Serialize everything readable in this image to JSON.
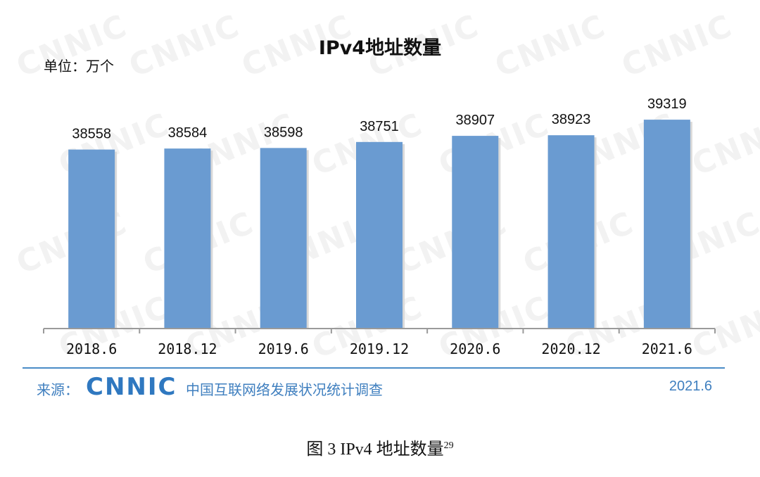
{
  "watermark": "CNNIC",
  "chart_data": {
    "type": "bar",
    "title": "IPv4地址数量",
    "unit_label": "单位：万个",
    "categories": [
      "2018.6",
      "2018.12",
      "2019.6",
      "2019.12",
      "2020.6",
      "2020.12",
      "2021.6"
    ],
    "values": [
      38558,
      38584,
      38598,
      38751,
      38907,
      38923,
      39319
    ],
    "data_labels": [
      "38558",
      "38584",
      "38598",
      "38751",
      "38907",
      "38923",
      "39319"
    ],
    "bar_color": "#6a9bd1",
    "grid": false,
    "legend": "none"
  },
  "source": {
    "prefix": "来源：",
    "logo_text": "CNNIC",
    "org_name": "中国互联网络发展状况统计调查",
    "date": "2021.6",
    "accent_color": "#3f7fbf"
  },
  "caption": {
    "text": "图  3    IPv4 地址数量",
    "footnote": "29"
  }
}
